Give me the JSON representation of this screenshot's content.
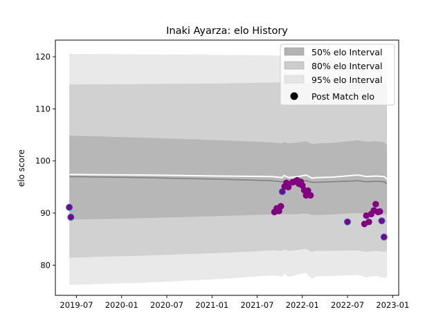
{
  "chart_data": {
    "type": "line",
    "title": "Inaki Ayarza: elo History",
    "xlabel": "",
    "ylabel": "elo score",
    "x_unit": "months since 2019-01",
    "xlim": [
      3.2,
      48.8
    ],
    "ylim": [
      74.2,
      123.2
    ],
    "x_ticks": [
      {
        "label": "2019-07",
        "x": 6
      },
      {
        "label": "2020-01",
        "x": 12
      },
      {
        "label": "2020-07",
        "x": 18
      },
      {
        "label": "2021-01",
        "x": 24
      },
      {
        "label": "2021-07",
        "x": 30
      },
      {
        "label": "2022-01",
        "x": 36
      },
      {
        "label": "2022-07",
        "x": 42
      },
      {
        "label": "2023-01",
        "x": 48
      }
    ],
    "y_ticks": [
      80,
      90,
      100,
      110,
      120
    ],
    "legend": {
      "position": "top-right",
      "entries": [
        "50% elo Interval",
        "80% elo Interval",
        "95% elo Interval",
        "Post Match elo"
      ]
    },
    "colors": {
      "band50": "#b3b3b3",
      "band80": "#cccccc",
      "band95": "#e5e5e5",
      "mean_line": "#808080",
      "upper_line": "#ffffff",
      "marker_fill": "#800080",
      "marker_edge": "#3050c8"
    },
    "band_x": [
      5.1,
      15,
      25,
      32,
      33.3,
      33.6,
      34.2,
      35.5,
      36.5,
      37.3,
      37.8,
      40,
      43.4,
      44.5,
      45.8,
      46.9,
      47.2
    ],
    "series": [
      {
        "name": "95% elo Interval",
        "upper": [
          120.5,
          120.4,
          120.3,
          120.2,
          120.1,
          120.2,
          120.1,
          120.1,
          120.1,
          120.2,
          120.1,
          120.1,
          120.1,
          120.2,
          120.1,
          120.2,
          119.9
        ],
        "lower": [
          76.3,
          76.7,
          77.4,
          78.1,
          77.9,
          78.5,
          77.8,
          78.3,
          78.6,
          77.5,
          77.9,
          78.0,
          78.2,
          77.7,
          78.0,
          77.6,
          77.8
        ]
      },
      {
        "name": "80% elo Interval",
        "upper": [
          114.6,
          114.7,
          114.8,
          115.0,
          115.0,
          115.1,
          115.0,
          114.8,
          114.8,
          114.9,
          114.9,
          114.9,
          114.8,
          115.0,
          115.0,
          115.0,
          114.7
        ],
        "lower": [
          81.5,
          81.9,
          82.4,
          82.9,
          82.8,
          83.1,
          82.8,
          83.0,
          83.2,
          82.6,
          82.8,
          82.8,
          82.9,
          82.6,
          82.8,
          82.6,
          82.7
        ]
      },
      {
        "name": "50% elo Interval",
        "upper": [
          104.8,
          104.4,
          103.9,
          103.5,
          103.3,
          103.6,
          103.3,
          103.5,
          103.7,
          103.2,
          103.3,
          103.4,
          103.9,
          103.6,
          103.7,
          103.5,
          102.9
        ],
        "lower": [
          88.8,
          89.1,
          89.5,
          89.8,
          89.8,
          89.9,
          89.8,
          89.9,
          90.0,
          89.7,
          89.7,
          89.8,
          90.1,
          89.9,
          89.9,
          89.9,
          89.7
        ]
      },
      {
        "name": "mean",
        "values": [
          97.0,
          96.8,
          96.5,
          96.2,
          96.0,
          96.1,
          96.0,
          96.1,
          96.2,
          95.9,
          95.9,
          96.0,
          96.2,
          96.0,
          96.1,
          96.0,
          95.6
        ]
      },
      {
        "name": "upper mean",
        "values": [
          97.4,
          97.3,
          97.1,
          97.0,
          96.8,
          97.2,
          96.8,
          97.0,
          97.3,
          96.7,
          96.8,
          96.9,
          97.3,
          97.0,
          97.1,
          97.0,
          96.5
        ]
      }
    ],
    "points": [
      {
        "x": 5.05,
        "y": 91.1,
        "edge": true
      },
      {
        "x": 5.25,
        "y": 89.2,
        "edge": true
      },
      {
        "x": 32.3,
        "y": 90.2,
        "edge": false
      },
      {
        "x": 32.6,
        "y": 90.9,
        "edge": false
      },
      {
        "x": 32.9,
        "y": 90.4,
        "edge": false
      },
      {
        "x": 33.15,
        "y": 91.3,
        "edge": false
      },
      {
        "x": 33.35,
        "y": 94.1,
        "edge": true
      },
      {
        "x": 33.65,
        "y": 95.1,
        "edge": false
      },
      {
        "x": 33.9,
        "y": 95.8,
        "edge": false
      },
      {
        "x": 34.15,
        "y": 95.0,
        "edge": false
      },
      {
        "x": 34.7,
        "y": 95.9,
        "edge": false
      },
      {
        "x": 35.0,
        "y": 96.0,
        "edge": false
      },
      {
        "x": 35.3,
        "y": 96.3,
        "edge": false
      },
      {
        "x": 35.55,
        "y": 95.6,
        "edge": false
      },
      {
        "x": 35.8,
        "y": 96.0,
        "edge": false
      },
      {
        "x": 36.0,
        "y": 95.3,
        "edge": false
      },
      {
        "x": 36.25,
        "y": 94.4,
        "edge": false
      },
      {
        "x": 36.5,
        "y": 93.4,
        "edge": false
      },
      {
        "x": 36.75,
        "y": 94.3,
        "edge": false
      },
      {
        "x": 37.1,
        "y": 93.4,
        "edge": false
      },
      {
        "x": 42.0,
        "y": 88.3,
        "edge": true
      },
      {
        "x": 44.25,
        "y": 87.9,
        "edge": false
      },
      {
        "x": 44.5,
        "y": 89.5,
        "edge": false
      },
      {
        "x": 44.85,
        "y": 88.3,
        "edge": false
      },
      {
        "x": 45.15,
        "y": 89.8,
        "edge": false
      },
      {
        "x": 45.5,
        "y": 90.5,
        "edge": false
      },
      {
        "x": 45.75,
        "y": 91.7,
        "edge": false
      },
      {
        "x": 46.05,
        "y": 90.2,
        "edge": false
      },
      {
        "x": 46.3,
        "y": 90.3,
        "edge": false
      },
      {
        "x": 46.55,
        "y": 88.5,
        "edge": true
      },
      {
        "x": 46.85,
        "y": 85.4,
        "edge": true
      }
    ]
  }
}
